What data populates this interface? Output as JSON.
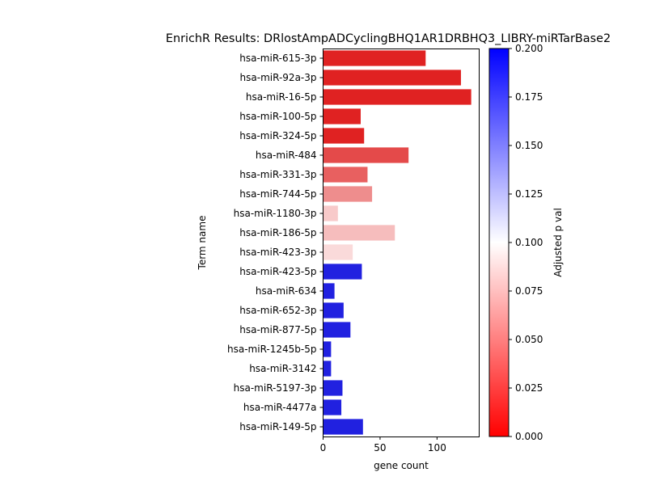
{
  "chart_data": {
    "type": "bar",
    "orientation": "horizontal",
    "title": "EnrichR Results: DRlostAmpADCyclingBHQ1AR1DRBHQ3_LIBRY-miRTarBase2",
    "xlabel": "gene count",
    "ylabel": "Term name",
    "xlim": [
      0,
      137
    ],
    "xticks": [
      0,
      50,
      100
    ],
    "grid": false,
    "categories": [
      "hsa-miR-615-3p",
      "hsa-miR-92a-3p",
      "hsa-miR-16-5p",
      "hsa-miR-100-5p",
      "hsa-miR-324-5p",
      "hsa-miR-484",
      "hsa-miR-331-3p",
      "hsa-miR-744-5p",
      "hsa-miR-1180-3p",
      "hsa-miR-186-5p",
      "hsa-miR-423-3p",
      "hsa-miR-423-5p",
      "hsa-miR-634",
      "hsa-miR-652-3p",
      "hsa-miR-877-5p",
      "hsa-miR-1245b-5p",
      "hsa-miR-3142",
      "hsa-miR-5197-3p",
      "hsa-miR-4477a",
      "hsa-miR-149-5p"
    ],
    "values": [
      90,
      121,
      130,
      33,
      36,
      75,
      39,
      43,
      13,
      63,
      26,
      34,
      10,
      18,
      24,
      7,
      7,
      17,
      16,
      35
    ],
    "bar_colors": [
      "#e02222",
      "#e02222",
      "#e02222",
      "#e02222",
      "#e02222",
      "#e44a4a",
      "#e86060",
      "#ee8d8d",
      "#f8caca",
      "#f6bdbd",
      "#fadada",
      "#2121e0",
      "#2121e0",
      "#2121e0",
      "#2121e0",
      "#2121e0",
      "#2121e0",
      "#2121e0",
      "#2121e0",
      "#2121e0"
    ],
    "colorbar": {
      "label": "Adjusted p val",
      "range": [
        0,
        0.2
      ],
      "ticks": [
        "0.000",
        "0.025",
        "0.050",
        "0.075",
        "0.100",
        "0.125",
        "0.150",
        "0.175",
        "0.200"
      ],
      "colors": [
        "#ff0000",
        "#ffffff",
        "#0000ff"
      ]
    }
  }
}
